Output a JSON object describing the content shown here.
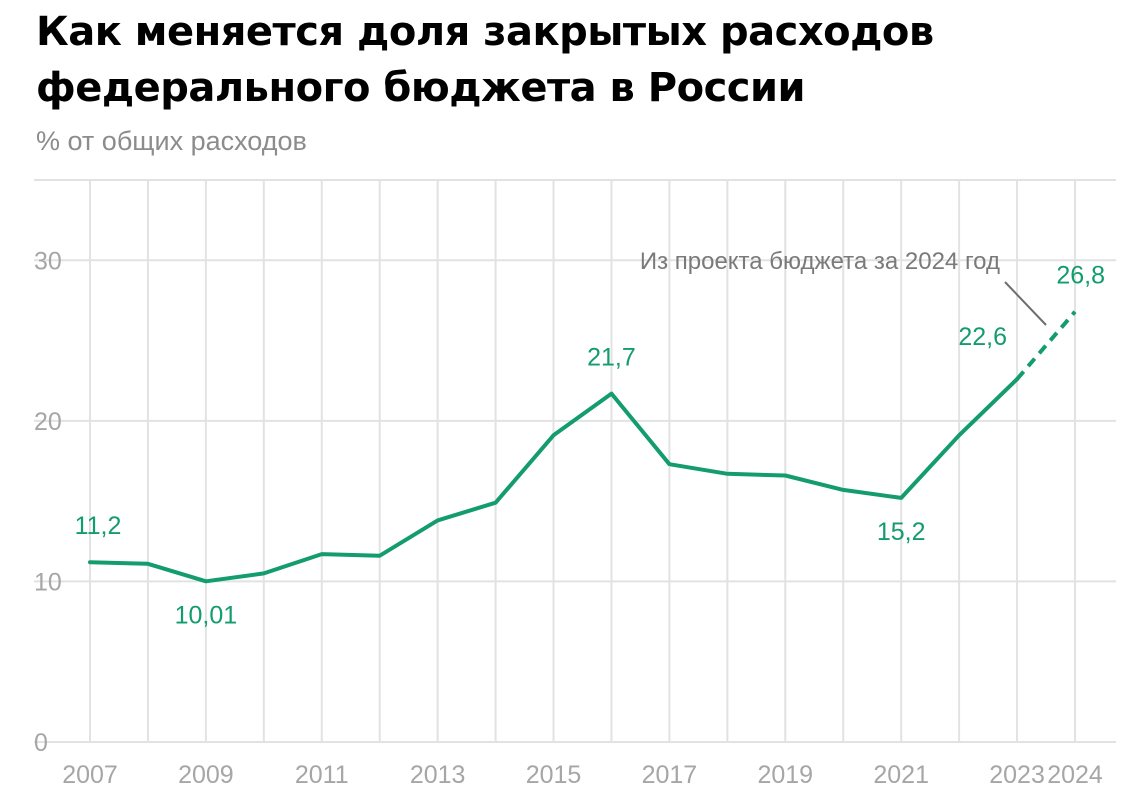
{
  "colors": {
    "line": "#139c6d",
    "grid": "#e2e2e2",
    "tick": "#a6a6a6",
    "annotation": "#7a7a7a"
  },
  "chart_data": {
    "type": "line",
    "title": "Как меняется доля закрытых расходов федерального бюджета в России",
    "subtitle": "% от общих расходов",
    "xlabel": "",
    "ylabel": "",
    "ylim": [
      0,
      35
    ],
    "yticks": [
      0,
      10,
      20,
      30
    ],
    "xlim": [
      2007,
      2024
    ],
    "xticks": [
      2007,
      2009,
      2011,
      2013,
      2015,
      2017,
      2019,
      2021,
      2023,
      2024
    ],
    "grid": true,
    "x": [
      2007,
      2008,
      2009,
      2010,
      2011,
      2012,
      2013,
      2014,
      2015,
      2016,
      2017,
      2018,
      2019,
      2020,
      2021,
      2022,
      2023,
      2024
    ],
    "series": [
      {
        "values": [
          11.2,
          11.1,
          10.01,
          10.5,
          11.7,
          11.6,
          13.8,
          14.9,
          19.1,
          21.7,
          17.3,
          16.7,
          16.6,
          15.7,
          15.2,
          19.1,
          22.6,
          26.8
        ],
        "projected_from": 2023
      }
    ],
    "data_labels": [
      {
        "x": 2007,
        "y": 11.2,
        "text": "11,2",
        "position": "above"
      },
      {
        "x": 2009,
        "y": 10.01,
        "text": "10,01",
        "position": "below"
      },
      {
        "x": 2016,
        "y": 21.7,
        "text": "21,7",
        "position": "above"
      },
      {
        "x": 2021,
        "y": 15.2,
        "text": "15,2",
        "position": "below"
      },
      {
        "x": 2023,
        "y": 22.6,
        "text": "22,6",
        "position": "above-left"
      },
      {
        "x": 2024,
        "y": 26.8,
        "text": "26,8",
        "position": "above"
      }
    ],
    "annotations": [
      {
        "text": "Из проекта бюджета за 2024 год",
        "points_to_year": 2023.5
      }
    ]
  }
}
